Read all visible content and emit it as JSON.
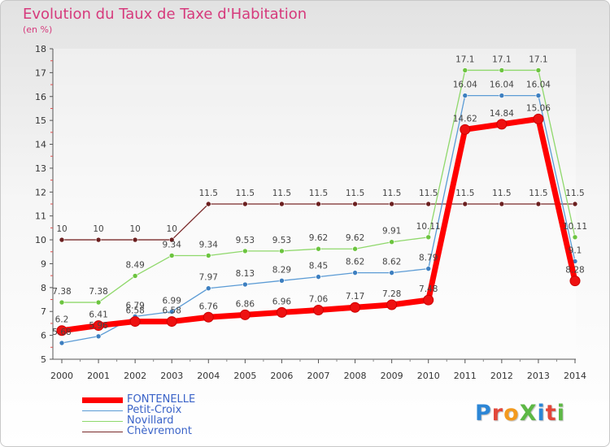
{
  "title": "Evolution du Taux de Taxe d'Habitation",
  "unit_label": "(en %)",
  "logo": {
    "text": "ProXiti",
    "letters": [
      {
        "ch": "P",
        "color": "#2c86d6"
      },
      {
        "ch": "r",
        "color": "#e2473a"
      },
      {
        "ch": "o",
        "color": "#f39a1e"
      },
      {
        "ch": "X",
        "color": "#5db845"
      },
      {
        "ch": "i",
        "color": "#2c86d6"
      },
      {
        "ch": "t",
        "color": "#e2473a"
      },
      {
        "ch": "i",
        "color": "#5db845"
      }
    ]
  },
  "chart_data": {
    "type": "line",
    "title": "Evolution du Taux de Taxe d'Habitation",
    "ylabel": "(en %)",
    "xlabel": "",
    "x": [
      2000,
      2001,
      2002,
      2003,
      2004,
      2005,
      2006,
      2007,
      2008,
      2009,
      2010,
      2011,
      2012,
      2013,
      2014
    ],
    "ylim": [
      5,
      18
    ],
    "yticks": [
      5,
      6,
      7,
      8,
      9,
      10,
      11,
      12,
      13,
      14,
      15,
      16,
      17,
      18
    ],
    "grid": false,
    "legend_position": "bottom-left",
    "series": [
      {
        "name": "FONTENELLE",
        "color": "#ff0000",
        "marker_color": "#ee1111",
        "width": 7,
        "marker_r": 6,
        "labels": [
          "6.2",
          "6.41",
          "6.58",
          "6.58",
          "6.76",
          "6.86",
          "6.96",
          "7.06",
          "7.17",
          "7.28",
          "7.48",
          "14.62",
          "14.84",
          "15.06",
          "8.28"
        ],
        "values": [
          6.2,
          6.41,
          6.58,
          6.58,
          6.76,
          6.86,
          6.96,
          7.06,
          7.17,
          7.28,
          7.48,
          14.62,
          14.84,
          15.06,
          8.28
        ]
      },
      {
        "name": "Petit-Croix",
        "color": "#5b9bd5",
        "marker_color": "#3d7fc0",
        "width": 1.3,
        "marker_r": 3,
        "labels": [
          "5.68",
          "5.96",
          "6.79",
          "6.99",
          "7.97",
          "8.13",
          "8.29",
          "8.45",
          "8.62",
          "8.62",
          "8.79",
          "16.04",
          "16.04",
          "16.04",
          "9.1"
        ],
        "values": [
          5.68,
          5.96,
          6.79,
          6.99,
          7.97,
          8.13,
          8.29,
          8.45,
          8.62,
          8.62,
          8.79,
          16.04,
          16.04,
          16.04,
          9.1
        ]
      },
      {
        "name": "Novillard",
        "color": "#8fd86b",
        "marker_color": "#6cc43f",
        "width": 1.3,
        "marker_r": 3,
        "labels": [
          "7.38",
          "7.38",
          "8.49",
          "9.34",
          "9.34",
          "9.53",
          "9.53",
          "9.62",
          "9.62",
          "9.91",
          "10.11",
          "17.1",
          "17.1",
          "17.1",
          "10.11"
        ],
        "values": [
          7.38,
          7.38,
          8.49,
          9.34,
          9.34,
          9.53,
          9.53,
          9.62,
          9.62,
          9.91,
          10.11,
          17.1,
          17.1,
          17.1,
          10.11
        ]
      },
      {
        "name": "Chèvremont",
        "color": "#7a2a2a",
        "marker_color": "#6b1f1f",
        "width": 1.3,
        "marker_r": 3,
        "labels": [
          "10",
          "10",
          "10",
          "10",
          "11.5",
          "11.5",
          "11.5",
          "11.5",
          "11.5",
          "11.5",
          "11.5",
          "11.5",
          "11.5",
          "11.5",
          "11.5"
        ],
        "values": [
          10,
          10,
          10,
          10,
          11.5,
          11.5,
          11.5,
          11.5,
          11.5,
          11.5,
          11.5,
          11.5,
          11.5,
          11.5,
          11.5
        ]
      }
    ],
    "legend": [
      "FONTENELLE",
      "Petit-Croix",
      "Novillard",
      "Chèvremont"
    ]
  }
}
